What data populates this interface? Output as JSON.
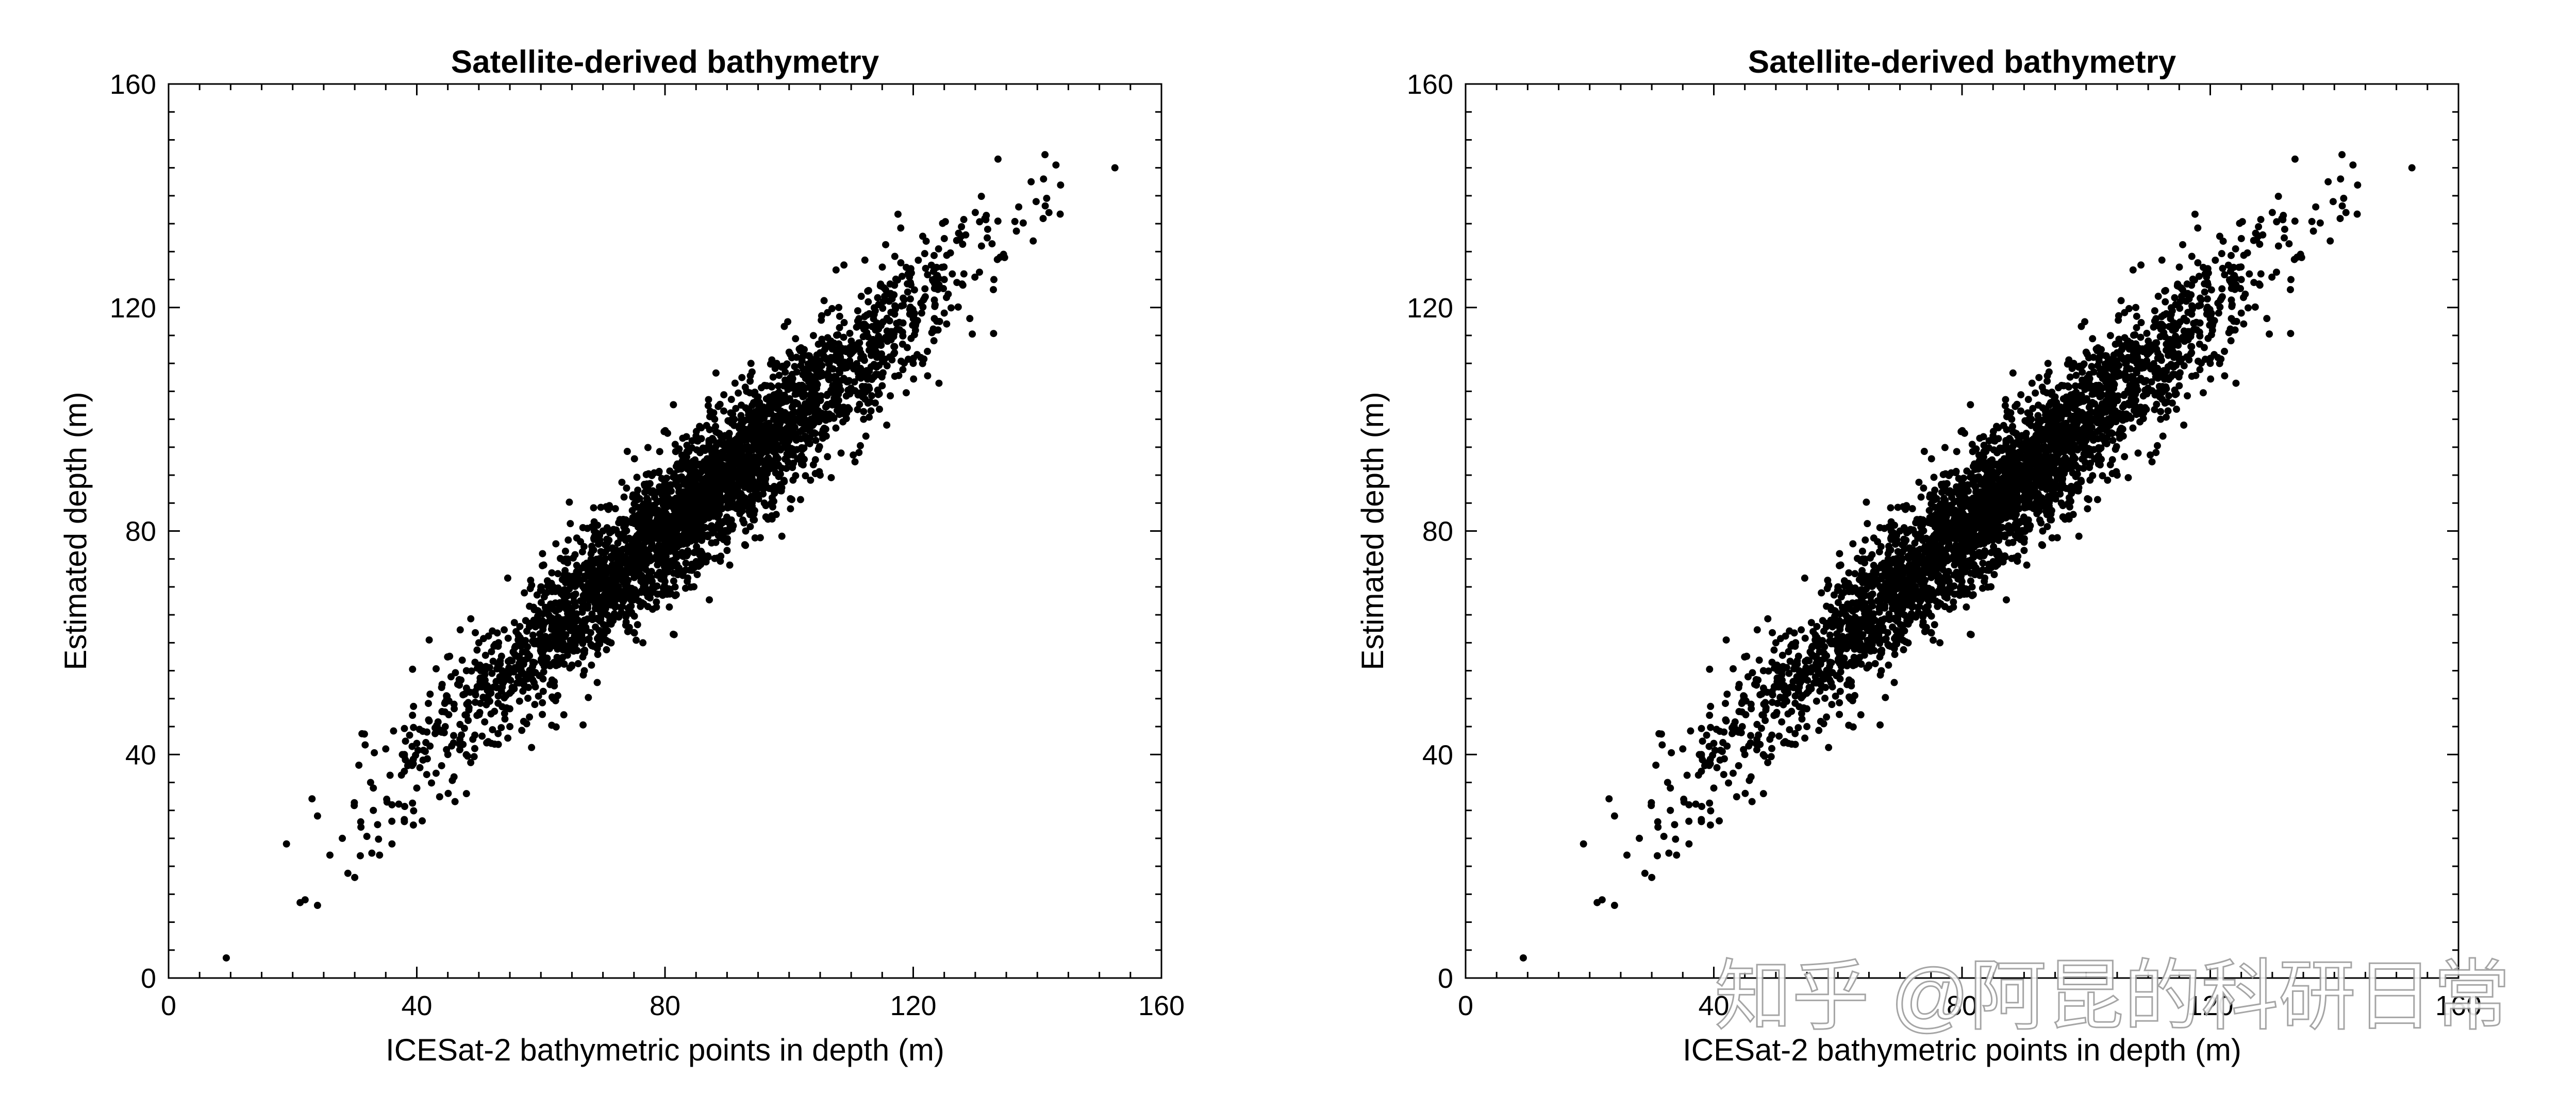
{
  "watermark": "知乎 @阿昆的科研日常",
  "chart_data": [
    {
      "type": "scatter",
      "title": "Satellite-derived bathymetry",
      "xlabel": "ICESat-2 bathymetric points in depth (m)",
      "ylabel": "Estimated depth (m)",
      "xlim": [
        0,
        160
      ],
      "ylim": [
        0,
        160
      ],
      "xticks": [
        0,
        40,
        80,
        120,
        160
      ],
      "yticks": [
        0,
        40,
        80,
        120,
        160
      ],
      "grid": false,
      "marker_color": "#000000",
      "points": [
        [
          9.3,
          3.6
        ],
        [
          21.2,
          13.5
        ],
        [
          24,
          13
        ],
        [
          22,
          14
        ],
        [
          19,
          24
        ],
        [
          24,
          29
        ],
        [
          26,
          22
        ],
        [
          28,
          25
        ],
        [
          30,
          18
        ],
        [
          31,
          27
        ],
        [
          33,
          34
        ],
        [
          34,
          22
        ],
        [
          36,
          24
        ],
        [
          38,
          28
        ],
        [
          42,
          60.5
        ],
        [
          33,
          30
        ],
        [
          36,
          31
        ],
        [
          40,
          34
        ],
        [
          35,
          41
        ],
        [
          38,
          37
        ],
        [
          41,
          39
        ],
        [
          44,
          38
        ],
        [
          46,
          36
        ],
        [
          48,
          33
        ],
        [
          143,
          145.5
        ],
        [
          152.5,
          145
        ],
        [
          139,
          142.5
        ],
        [
          141,
          143
        ],
        [
          137,
          138
        ],
        [
          132,
          134
        ],
        [
          127,
          132
        ],
        [
          134,
          129
        ],
        [
          131,
          131
        ],
        [
          128,
          124
        ],
        [
          123,
          115.5
        ],
        [
          125,
          119
        ],
        [
          120,
          118
        ],
        [
          117,
          113
        ],
        [
          112,
          117
        ],
        [
          110,
          105
        ],
        [
          108,
          112
        ],
        [
          105,
          100
        ],
        [
          101,
          103
        ],
        [
          99,
          96
        ],
        [
          95,
          91
        ],
        [
          92,
          94
        ],
        [
          88,
          86
        ],
        [
          86,
          89
        ],
        [
          83,
          83
        ],
        [
          80,
          78
        ],
        [
          77,
          80
        ],
        [
          75,
          73
        ],
        [
          71,
          70
        ],
        [
          68,
          72
        ],
        [
          66,
          64
        ],
        [
          62,
          66
        ],
        [
          60,
          59
        ],
        [
          57,
          60
        ],
        [
          54,
          53
        ],
        [
          51,
          55
        ],
        [
          48,
          47
        ],
        [
          46,
          49
        ],
        [
          44,
          44
        ],
        [
          42,
          46
        ],
        [
          40,
          42
        ],
        [
          38,
          40
        ],
        [
          55,
          45
        ],
        [
          65,
          56
        ],
        [
          70,
          62
        ],
        [
          60,
          70
        ],
        [
          72,
          84
        ],
        [
          85,
          97
        ],
        [
          95,
          104
        ],
        [
          102,
          92
        ],
        [
          90,
          78
        ],
        [
          78,
          66
        ],
        [
          58,
          52
        ],
        [
          50,
          60
        ],
        [
          64,
          75
        ],
        [
          82,
          92
        ],
        [
          100,
          112
        ],
        [
          115,
          106
        ],
        [
          118,
          128
        ],
        [
          122,
          127
        ],
        [
          105,
          90
        ],
        [
          96,
          85
        ],
        [
          84,
          73
        ],
        [
          74,
          62
        ],
        [
          67,
          55
        ],
        [
          56,
          62
        ],
        [
          48,
          55
        ],
        [
          44,
          52
        ],
        [
          52,
          42
        ],
        [
          45,
          40
        ],
        [
          62,
          50
        ],
        [
          88,
          100
        ],
        [
          98,
          110
        ],
        [
          108,
          120
        ],
        [
          112,
          100
        ],
        [
          125,
          125
        ],
        [
          130,
          137
        ],
        [
          133,
          125
        ],
        [
          120,
          110
        ],
        [
          93,
          80
        ],
        [
          80,
          69
        ],
        [
          70,
          80
        ]
      ]
    },
    {
      "type": "scatter",
      "title": "Satellite-derived bathymetry",
      "xlabel": "ICESat-2 bathymetric points in depth (m)",
      "ylabel": "Estimated depth (m)",
      "xlim": [
        0,
        160
      ],
      "ylim": [
        0,
        160
      ],
      "xticks": [
        0,
        40,
        80,
        120,
        160
      ],
      "yticks": [
        0,
        40,
        80,
        120,
        160
      ],
      "grid": false,
      "marker_color": "#000000",
      "points": [
        [
          9.3,
          3.6
        ],
        [
          21.2,
          13.5
        ],
        [
          24,
          13
        ],
        [
          22,
          14
        ],
        [
          19,
          24
        ],
        [
          24,
          29
        ],
        [
          26,
          22
        ],
        [
          28,
          25
        ],
        [
          30,
          18
        ],
        [
          31,
          27
        ],
        [
          33,
          34
        ],
        [
          34,
          22
        ],
        [
          36,
          24
        ],
        [
          38,
          28
        ],
        [
          42,
          60.5
        ],
        [
          33,
          30
        ],
        [
          36,
          31
        ],
        [
          40,
          34
        ],
        [
          35,
          41
        ],
        [
          38,
          37
        ],
        [
          41,
          39
        ],
        [
          44,
          38
        ],
        [
          46,
          36
        ],
        [
          48,
          33
        ],
        [
          143,
          145.5
        ],
        [
          152.5,
          145
        ],
        [
          139,
          142.5
        ],
        [
          141,
          143
        ],
        [
          137,
          138
        ],
        [
          132,
          134
        ],
        [
          127,
          132
        ],
        [
          134,
          129
        ],
        [
          131,
          131
        ],
        [
          128,
          124
        ],
        [
          123,
          115.5
        ],
        [
          125,
          119
        ],
        [
          120,
          118
        ],
        [
          117,
          113
        ],
        [
          112,
          117
        ],
        [
          110,
          105
        ],
        [
          108,
          112
        ],
        [
          105,
          100
        ],
        [
          101,
          103
        ],
        [
          99,
          96
        ],
        [
          95,
          91
        ],
        [
          92,
          94
        ],
        [
          88,
          86
        ],
        [
          86,
          89
        ],
        [
          83,
          83
        ],
        [
          80,
          78
        ],
        [
          77,
          80
        ],
        [
          75,
          73
        ],
        [
          71,
          70
        ],
        [
          68,
          72
        ],
        [
          66,
          64
        ],
        [
          62,
          66
        ],
        [
          60,
          59
        ],
        [
          57,
          60
        ],
        [
          54,
          53
        ],
        [
          51,
          55
        ],
        [
          48,
          47
        ],
        [
          46,
          49
        ],
        [
          44,
          44
        ],
        [
          42,
          46
        ],
        [
          40,
          42
        ],
        [
          38,
          40
        ],
        [
          55,
          45
        ],
        [
          65,
          56
        ],
        [
          70,
          62
        ],
        [
          60,
          70
        ],
        [
          72,
          84
        ],
        [
          85,
          97
        ],
        [
          95,
          104
        ],
        [
          102,
          92
        ],
        [
          90,
          78
        ],
        [
          78,
          66
        ],
        [
          58,
          52
        ],
        [
          50,
          60
        ],
        [
          64,
          75
        ],
        [
          82,
          92
        ],
        [
          100,
          112
        ],
        [
          115,
          106
        ],
        [
          118,
          128
        ],
        [
          122,
          127
        ],
        [
          105,
          90
        ],
        [
          96,
          85
        ],
        [
          84,
          73
        ],
        [
          74,
          62
        ],
        [
          67,
          55
        ],
        [
          56,
          62
        ],
        [
          48,
          55
        ],
        [
          44,
          52
        ],
        [
          52,
          42
        ],
        [
          45,
          40
        ],
        [
          62,
          50
        ],
        [
          88,
          100
        ],
        [
          98,
          110
        ],
        [
          108,
          120
        ],
        [
          112,
          100
        ],
        [
          125,
          125
        ],
        [
          130,
          137
        ],
        [
          133,
          125
        ],
        [
          120,
          110
        ],
        [
          93,
          80
        ],
        [
          80,
          69
        ],
        [
          70,
          80
        ]
      ]
    }
  ]
}
